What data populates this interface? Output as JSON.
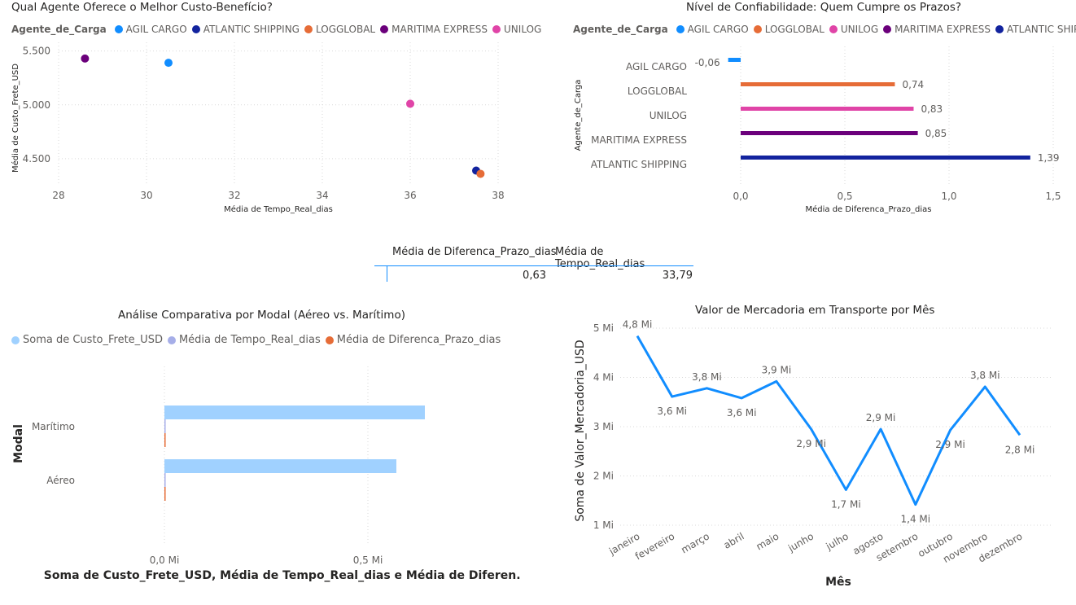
{
  "chart_data": [
    {
      "type": "scatter",
      "title": "Qual Agente Oferece o Melhor Custo-Benefício?",
      "legend_title": "Agente_de_Carga",
      "xlabel": "Média de Tempo_Real_dias",
      "ylabel": "Média de Custo_Frete_USD",
      "xlim": [
        28,
        38
      ],
      "ylim": [
        4250,
        5580
      ],
      "x_ticks": [
        "28",
        "30",
        "32",
        "34",
        "36",
        "38"
      ],
      "y_ticks": [
        "4.500",
        "5.000",
        "5.500"
      ],
      "series": [
        {
          "name": "AGIL CARGO",
          "color": "#118DFF",
          "x": 30.5,
          "y": 5390
        },
        {
          "name": "ATLANTIC SHIPPING",
          "color": "#12239E",
          "x": 37.5,
          "y": 4390
        },
        {
          "name": "LOGGLOBAL",
          "color": "#E66C37",
          "x": 37.6,
          "y": 4360
        },
        {
          "name": "MARITIMA EXPRESS",
          "color": "#6B007B",
          "x": 28.6,
          "y": 5430
        },
        {
          "name": "UNILOG",
          "color": "#E044A7",
          "x": 36.0,
          "y": 5010
        }
      ]
    },
    {
      "type": "bar",
      "orientation": "horizontal",
      "title": "Nível de Confiabilidade: Quem Cumpre os Prazos?",
      "legend_title": "Agente_de_Carga",
      "legend": [
        {
          "name": "AGIL CARGO",
          "color": "#118DFF"
        },
        {
          "name": "LOGGLOBAL",
          "color": "#E66C37"
        },
        {
          "name": "UNILOG",
          "color": "#E044A7"
        },
        {
          "name": "MARITIMA EXPRESS",
          "color": "#6B007B"
        },
        {
          "name": "ATLANTIC SHIPPING",
          "color": "#12239E"
        }
      ],
      "categories": [
        "AGIL CARGO",
        "LOGGLOBAL",
        "UNILOG",
        "MARITIMA EXPRESS",
        "ATLANTIC SHIPPING"
      ],
      "values": [
        -0.06,
        0.74,
        0.83,
        0.85,
        1.39
      ],
      "value_labels": [
        "-0,06",
        "0,74",
        "0,83",
        "0,85",
        "1,39"
      ],
      "colors": [
        "#118DFF",
        "#E66C37",
        "#E044A7",
        "#6B007B",
        "#12239E"
      ],
      "xlabel": "Média de Diferenca_Prazo_dias",
      "ylabel": "Agente_de_Carga",
      "xlim": [
        0,
        1.5
      ],
      "x_ticks": [
        "0,0",
        "0,5",
        "1,0",
        "1,5"
      ]
    },
    {
      "type": "table",
      "columns": [
        "Média de Diferenca_Prazo_dias",
        "Média de Tempo_Real_dias"
      ],
      "rows": [
        [
          "0,63",
          "33,79"
        ]
      ]
    },
    {
      "type": "bar",
      "orientation": "horizontal",
      "title": "Análise Comparativa por Modal (Aéreo vs. Marítimo)",
      "categories": [
        "Marítimo",
        "Aéreo"
      ],
      "series": [
        {
          "name": "Soma de Custo_Frete_USD",
          "color": "#A0D1FF",
          "values": [
            0.64,
            0.57
          ]
        },
        {
          "name": "Média de Tempo_Real_dias",
          "color": "#A6AEE8",
          "values": [
            0.0,
            0.0
          ]
        },
        {
          "name": "Média de Diferenca_Prazo_dias",
          "color": "#E66C37",
          "values": [
            0.0,
            0.0
          ]
        }
      ],
      "xlabel": "Soma de Custo_Frete_USD, Média de Tempo_Real_dias e Média de Diferen...",
      "ylabel": "Modal",
      "xlim": [
        -0.4,
        0.76
      ],
      "x_ticks": [
        "0,0 Mi",
        "0,5 Mi"
      ]
    },
    {
      "type": "line",
      "title": "Valor de Mercadoria em Transporte por Mês",
      "categories": [
        "janeiro",
        "fevereiro",
        "março",
        "abril",
        "maio",
        "junho",
        "julho",
        "agosto",
        "setembro",
        "outubro",
        "novembro",
        "dezembro"
      ],
      "series": [
        {
          "name": "Soma de Valor_Mercadoria_USD",
          "color": "#118DFF",
          "values": [
            4.84,
            3.61,
            3.78,
            3.58,
            3.92,
            2.95,
            1.72,
            2.95,
            1.42,
            2.93,
            3.81,
            2.83
          ],
          "labels": [
            "4,8 Mi",
            "3,6 Mi",
            "3,8 Mi",
            "3,6 Mi",
            "3,9 Mi",
            "2,9 Mi",
            "1,7 Mi",
            "2,9 Mi",
            "1,4 Mi",
            "2,9 Mi",
            "3,8 Mi",
            "2,8 Mi"
          ]
        }
      ],
      "xlabel": "Mês",
      "ylabel": "Soma de Valor_Mercadoria_USD",
      "ylim": [
        1,
        5
      ],
      "y_ticks": [
        "1 Mi",
        "2 Mi",
        "3 Mi",
        "4 Mi",
        "5 Mi"
      ]
    }
  ]
}
